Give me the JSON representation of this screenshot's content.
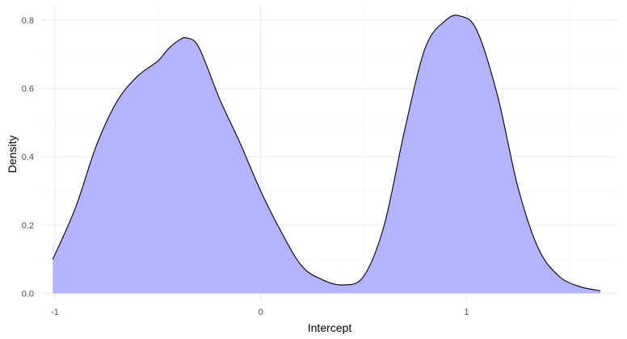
{
  "chart_data": {
    "type": "area",
    "title": "",
    "xlabel": "Intercept",
    "ylabel": "Density",
    "xlim": [
      -1.07,
      1.74
    ],
    "ylim": [
      -0.02,
      0.84
    ],
    "x_ticks": [
      -1,
      0,
      1
    ],
    "x_tick_labels": [
      "-1",
      "0",
      "1"
    ],
    "y_ticks": [
      0.0,
      0.2,
      0.4,
      0.6,
      0.8
    ],
    "y_tick_labels": [
      "0.0",
      "0.2",
      "0.4",
      "0.6",
      "0.8"
    ],
    "grid": true,
    "legend": "none",
    "colors": {
      "fill": "#b3b3ff",
      "line": "#000000",
      "grid": "#ebebeb"
    },
    "series": [
      {
        "x": [
          -1.01,
          -0.9,
          -0.8,
          -0.7,
          -0.6,
          -0.5,
          -0.45,
          -0.4,
          -0.36,
          -0.3,
          -0.2,
          -0.1,
          0.0,
          0.1,
          0.2,
          0.3,
          0.4,
          0.5,
          0.6,
          0.7,
          0.8,
          0.9,
          0.97,
          1.05,
          1.15,
          1.25,
          1.35,
          1.45,
          1.55,
          1.65
        ],
        "y": [
          0.1,
          0.25,
          0.43,
          0.56,
          0.635,
          0.68,
          0.715,
          0.74,
          0.748,
          0.72,
          0.57,
          0.44,
          0.3,
          0.18,
          0.08,
          0.04,
          0.025,
          0.05,
          0.2,
          0.48,
          0.72,
          0.8,
          0.812,
          0.77,
          0.58,
          0.31,
          0.13,
          0.05,
          0.02,
          0.008
        ]
      }
    ]
  }
}
